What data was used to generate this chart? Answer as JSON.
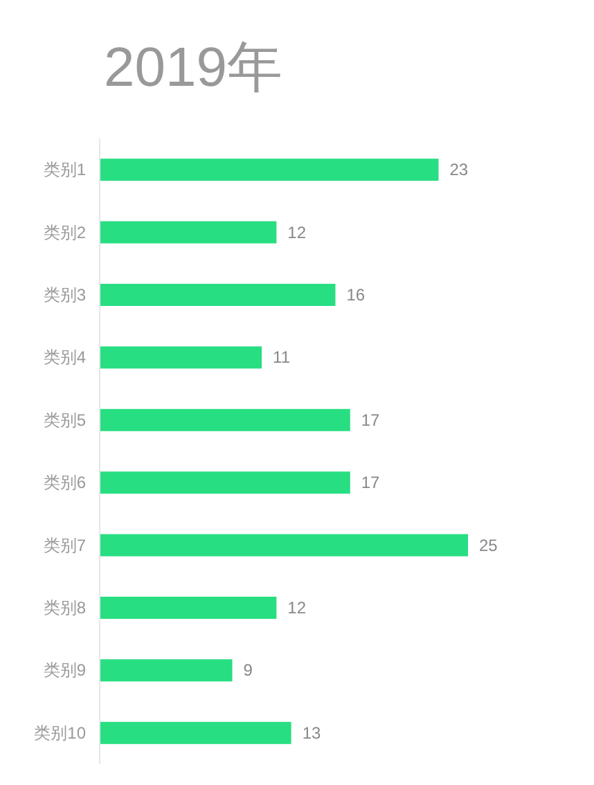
{
  "chart_data": {
    "type": "bar",
    "orientation": "horizontal",
    "title": "2019年",
    "categories": [
      "类别1",
      "类别2",
      "类别3",
      "类别4",
      "类别5",
      "类别6",
      "类别7",
      "类别8",
      "类别9",
      "类别10"
    ],
    "values": [
      23,
      12,
      16,
      11,
      17,
      17,
      25,
      12,
      9,
      13
    ],
    "color": "#28de82",
    "data_labels": true
  }
}
